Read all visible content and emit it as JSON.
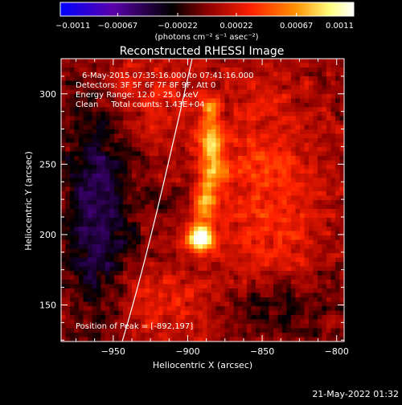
{
  "chart_data": {
    "type": "heatmap",
    "title": "Reconstructed RHESSI Image",
    "xlabel": "Heliocentric X (arcsec)",
    "ylabel": "Heliocentric Y (arcsec)",
    "xlim": [
      -985,
      -795
    ],
    "ylim": [
      124,
      325
    ],
    "x_ticks": [
      -950,
      -900,
      -850,
      -800
    ],
    "x_tick_labels": [
      "−950",
      "−900",
      "−850",
      "−800"
    ],
    "y_ticks": [
      150,
      200,
      250,
      300
    ],
    "y_tick_labels": [
      "150",
      "200",
      "250",
      "300"
    ],
    "colorbar": {
      "range": [
        -0.0011,
        0.0011
      ],
      "ticks": [
        -0.0011,
        -0.00067,
        -0.00022,
        0.00022,
        0.00067,
        0.0011
      ],
      "tick_labels": [
        "−0.0011",
        "−0.00067",
        "−0.00022",
        "0.00022",
        "0.00067",
        "0.0011"
      ],
      "units_label": "(photons cm⁻² s⁻¹ asec⁻²)",
      "colors": [
        "#0000ff",
        "#5a00aa",
        "#000000",
        "#8b0000",
        "#ff2000",
        "#ff9000",
        "#ffff80",
        "#ffffff"
      ]
    },
    "annotations": [
      "6-May-2015 07:35:16.000 to 07:41:16.000",
      "Detectors: 3F 5F 6F 7F 8F 9F, Att 0",
      "Energy Range: 12.0 - 25.0 keV",
      "Clean     Total counts: 1.43E+04"
    ],
    "peak_label": "Position of Peak = [-892,197]",
    "peak": [
      -892,
      197
    ],
    "sources": [
      {
        "x": -892,
        "y": 197,
        "sx": 7,
        "sy": 7,
        "amp": 0.0011
      },
      {
        "x": -888,
        "y": 225,
        "sx": 5,
        "sy": 12,
        "amp": 0.0007
      },
      {
        "x": -884,
        "y": 265,
        "sx": 6,
        "sy": 10,
        "amp": 0.00075
      },
      {
        "x": -885,
        "y": 290,
        "sx": 5,
        "sy": 6,
        "amp": 0.00065
      },
      {
        "x": -880,
        "y": 245,
        "sx": 5,
        "sy": 6,
        "amp": 0.0005
      },
      {
        "x": -845,
        "y": 230,
        "sx": 28,
        "sy": 60,
        "amp": 0.00035
      },
      {
        "x": -930,
        "y": 300,
        "sx": 25,
        "sy": 25,
        "amp": 0.00025
      },
      {
        "x": -920,
        "y": 150,
        "sx": 25,
        "sy": 20,
        "amp": 0.0003
      },
      {
        "x": -960,
        "y": 220,
        "sx": 15,
        "sy": 60,
        "amp": -0.00045
      },
      {
        "x": -840,
        "y": 150,
        "sx": 25,
        "sy": 15,
        "amp": -0.0003
      }
    ],
    "limb_arc_points": [
      [
        -944,
        124
      ],
      [
        -928,
        180
      ],
      [
        -913,
        250
      ],
      [
        -897,
        325
      ]
    ]
  },
  "footer": {
    "timestamp": "21-May-2022 01:32"
  }
}
